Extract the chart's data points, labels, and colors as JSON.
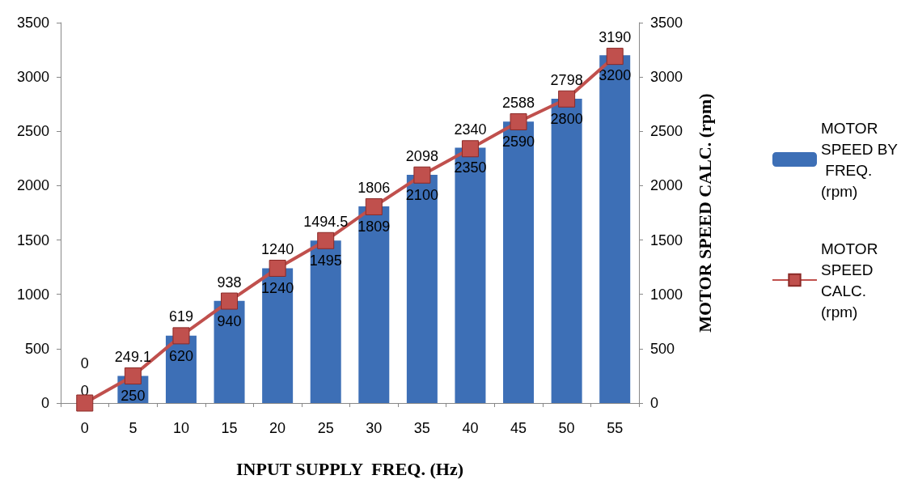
{
  "chart_data": {
    "type": "bar",
    "xlabel": "INPUT SUPPLY  FREQ. (Hz)",
    "y2label": "MOTOR SPEED CALC. (rpm)",
    "categories": [
      "0",
      "5",
      "10",
      "15",
      "20",
      "25",
      "30",
      "35",
      "40",
      "45",
      "50",
      "55"
    ],
    "series": [
      {
        "name": "MOTOR SPEED BY FREQ. (rpm)",
        "color": "#3d6fb6",
        "values": [
          0,
          250,
          620,
          940,
          1240,
          1495,
          1809,
          2100,
          2350,
          2590,
          2800,
          3200
        ]
      },
      {
        "name": "MOTOR SPEED CALC. (rpm)",
        "type": "line",
        "axis": "y2",
        "color": "#c0504d",
        "marker": "square",
        "values": [
          0,
          249.1,
          619,
          938,
          1240,
          1494.5,
          1806,
          2098,
          2340,
          2588,
          2798,
          3190
        ]
      }
    ],
    "ylim": [
      0,
      3500
    ],
    "yticks": [
      0,
      500,
      1000,
      1500,
      2000,
      2500,
      3000,
      3500
    ],
    "y2lim": [
      0,
      3500
    ],
    "y2ticks": [
      0,
      500,
      1000,
      1500,
      2000,
      2500,
      3000,
      3500
    ],
    "data_labels": true,
    "grid": false,
    "legend": "right"
  }
}
